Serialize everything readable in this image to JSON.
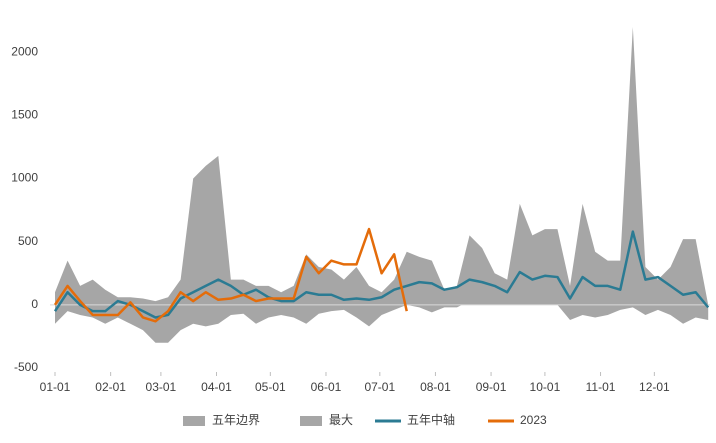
{
  "chart_data": {
    "type": "line",
    "x": [
      1,
      8,
      15,
      22,
      29,
      36,
      43,
      50,
      57,
      64,
      71,
      78,
      85,
      92,
      99,
      106,
      113,
      120,
      127,
      134,
      141,
      148,
      155,
      162,
      169,
      176,
      183,
      190,
      197,
      204,
      211,
      218,
      225,
      232,
      239,
      246,
      253,
      260,
      267,
      274,
      281,
      288,
      295,
      302,
      309,
      316,
      323,
      330,
      337,
      344,
      351,
      358,
      365
    ],
    "xlim": [
      1,
      366
    ],
    "xticks": [
      {
        "value": 1,
        "label": "01-01"
      },
      {
        "value": 32,
        "label": "02-01"
      },
      {
        "value": 60,
        "label": "03-01"
      },
      {
        "value": 91,
        "label": "04-01"
      },
      {
        "value": 121,
        "label": "05-01"
      },
      {
        "value": 152,
        "label": "06-01"
      },
      {
        "value": 182,
        "label": "07-01"
      },
      {
        "value": 213,
        "label": "08-01"
      },
      {
        "value": 244,
        "label": "09-01"
      },
      {
        "value": 274,
        "label": "10-01"
      },
      {
        "value": 305,
        "label": "11-01"
      },
      {
        "value": 335,
        "label": "12-01"
      }
    ],
    "ylim": [
      -500,
      2200
    ],
    "yticks": [
      -500,
      0,
      500,
      1000,
      1500,
      2000
    ],
    "grid": false,
    "series": [
      {
        "name": "五年边界",
        "style": "area",
        "color": "#a6a6a6",
        "values": [
          -150,
          -50,
          -80,
          -100,
          -150,
          -100,
          -150,
          -200,
          -300,
          -300,
          -200,
          -150,
          -170,
          -150,
          -80,
          -70,
          -150,
          -100,
          -80,
          -100,
          -150,
          -70,
          -50,
          -40,
          -100,
          -170,
          -80,
          -40,
          0,
          -20,
          -60,
          -20,
          -20,
          30,
          30,
          20,
          0,
          20,
          30,
          20,
          0,
          -120,
          -80,
          -100,
          -80,
          -40,
          -20,
          -80,
          -40,
          -80,
          -150,
          -100,
          -120
        ]
      },
      {
        "name": "最大",
        "style": "area",
        "color": "#a6a6a6",
        "values": [
          100,
          350,
          150,
          200,
          120,
          60,
          60,
          50,
          30,
          60,
          200,
          1000,
          1100,
          1180,
          200,
          200,
          150,
          150,
          100,
          150,
          400,
          300,
          280,
          200,
          300,
          150,
          100,
          200,
          420,
          380,
          350,
          120,
          150,
          550,
          450,
          250,
          200,
          800,
          550,
          600,
          600,
          150,
          800,
          420,
          350,
          350,
          2200,
          300,
          200,
          300,
          520,
          520,
          0
        ]
      },
      {
        "name": "五年中轴",
        "style": "line",
        "color": "#2b7b93",
        "values": [
          -50,
          100,
          0,
          -50,
          -50,
          30,
          0,
          -50,
          -100,
          -80,
          50,
          100,
          150,
          200,
          150,
          80,
          120,
          60,
          30,
          30,
          100,
          80,
          80,
          40,
          50,
          40,
          60,
          120,
          150,
          180,
          170,
          120,
          140,
          200,
          180,
          150,
          100,
          260,
          200,
          230,
          220,
          50,
          220,
          150,
          150,
          120,
          580,
          200,
          220,
          150,
          80,
          100,
          -20
        ]
      },
      {
        "name": "2023",
        "style": "line",
        "color": "#e46c0a",
        "values": [
          0,
          150,
          30,
          -80,
          -80,
          -80,
          20,
          -100,
          -130,
          -50,
          100,
          30,
          100,
          40,
          50,
          80,
          30,
          50,
          50,
          50,
          380,
          250,
          350,
          320,
          320,
          600,
          250,
          400,
          -50,
          null,
          null,
          null,
          null,
          null,
          null,
          null,
          null,
          null,
          null,
          null,
          null,
          null,
          null,
          null,
          null,
          null,
          null,
          null,
          null,
          null,
          null,
          null,
          null
        ]
      }
    ]
  }
}
